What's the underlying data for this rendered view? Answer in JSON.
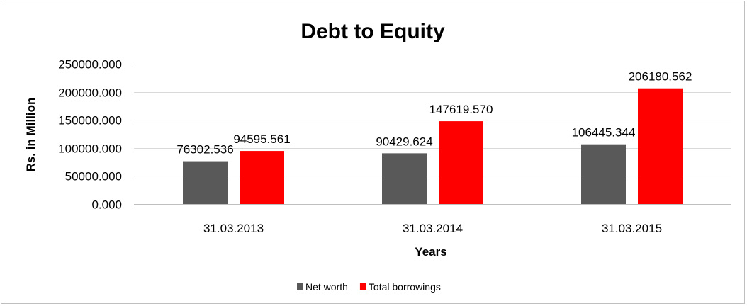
{
  "chart_data": {
    "type": "bar",
    "title": "Debt to Equity",
    "xlabel": "Years",
    "ylabel": "Rs. in Million",
    "categories": [
      "31.03.2013",
      "31.03.2014",
      "31.03.2015"
    ],
    "series": [
      {
        "name": "Net worth",
        "color": "#595959",
        "values": [
          76302.536,
          90429.624,
          106445.344
        ],
        "labels": [
          "76302.536",
          "90429.624",
          "106445.344"
        ]
      },
      {
        "name": "Total borrowings",
        "color": "#ff0000",
        "values": [
          94595.561,
          147619.57,
          206180.562
        ],
        "labels": [
          "94595.561",
          "147619.570",
          "206180.562"
        ]
      }
    ],
    "ylim": [
      0,
      250000
    ],
    "yticks": [
      0,
      50000,
      100000,
      150000,
      200000,
      250000
    ],
    "ytick_labels": [
      "0.000",
      "50000.000",
      "100000.000",
      "150000.000",
      "200000.000",
      "250000.000"
    ],
    "grid": true,
    "legend_position": "bottom"
  }
}
